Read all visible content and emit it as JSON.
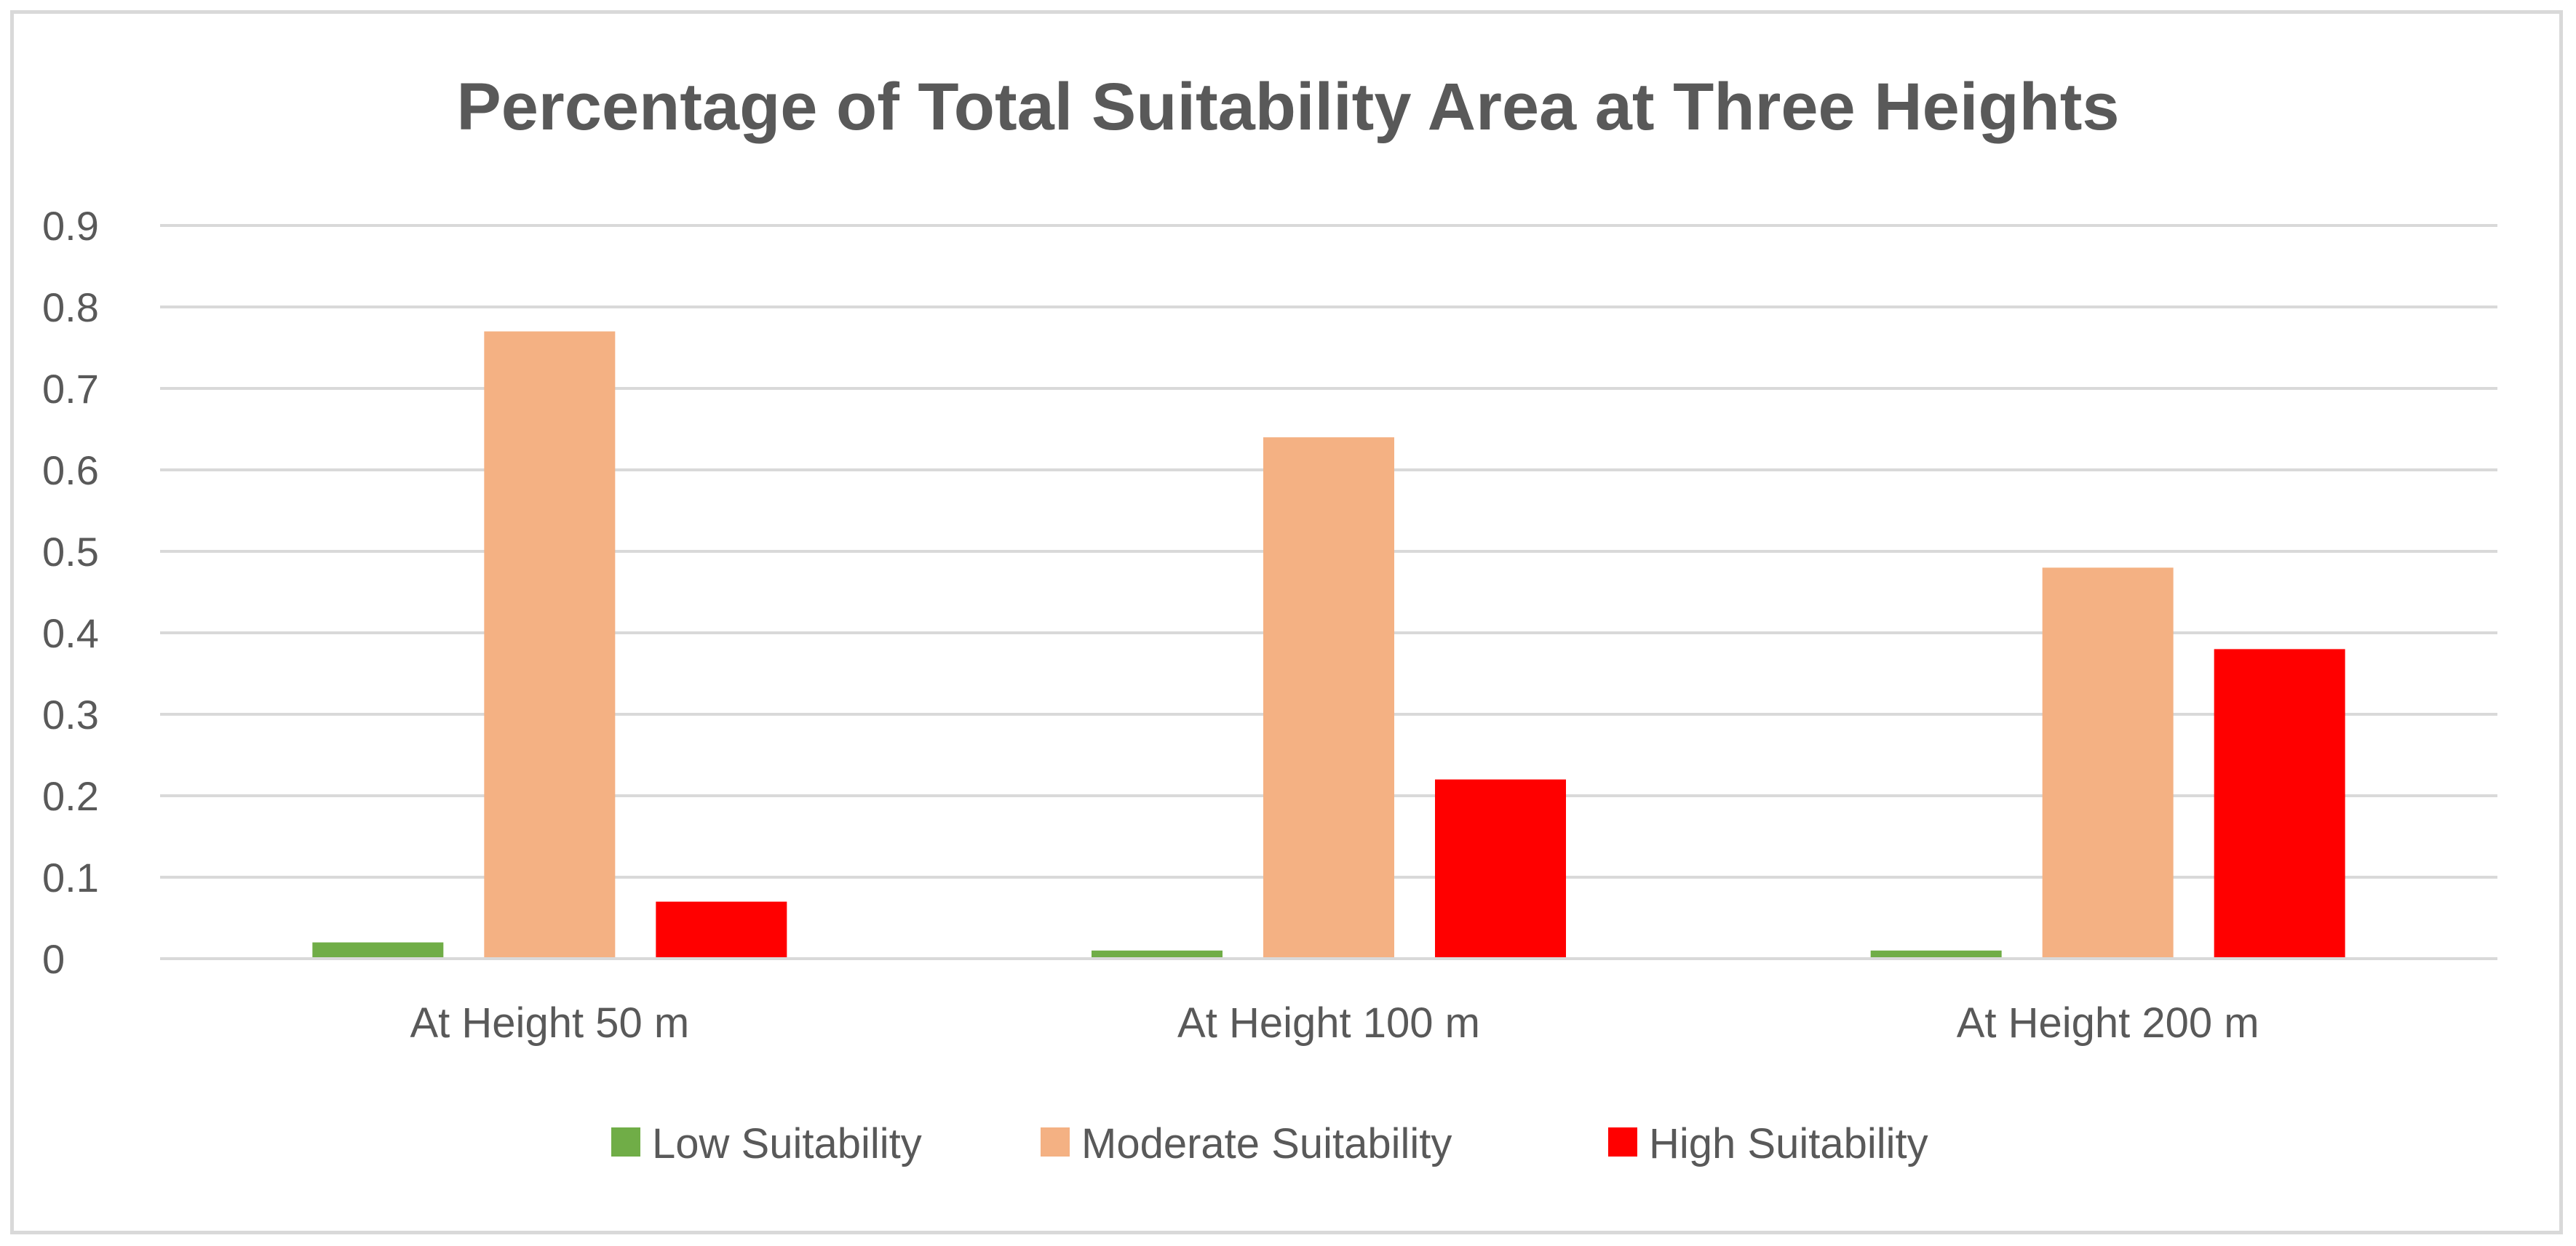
{
  "chart_data": {
    "type": "bar",
    "title": "Percentage of Total Suitability Area at Three Heights",
    "xlabel": "",
    "ylabel": "",
    "categories": [
      "At Height 50 m",
      "At Height 100 m",
      "At Height 200 m"
    ],
    "series": [
      {
        "name": "Low Suitability",
        "color": "#70ad47",
        "values": [
          0.02,
          0.01,
          0.01
        ]
      },
      {
        "name": "Moderate Suitability",
        "color": "#f4b183",
        "values": [
          0.77,
          0.64,
          0.48
        ]
      },
      {
        "name": "High Suitability",
        "color": "#ff0000",
        "values": [
          0.07,
          0.22,
          0.38
        ]
      }
    ],
    "ylim": [
      0,
      0.9
    ],
    "yticks": [
      0,
      0.1,
      0.2,
      0.3,
      0.4,
      0.5,
      0.6,
      0.7,
      0.8,
      0.9
    ],
    "ytick_labels": [
      "0",
      "0.1",
      "0.2",
      "0.3",
      "0.4",
      "0.5",
      "0.6",
      "0.7",
      "0.8",
      "0.9"
    ],
    "grid": true,
    "legend_position": "bottom"
  }
}
